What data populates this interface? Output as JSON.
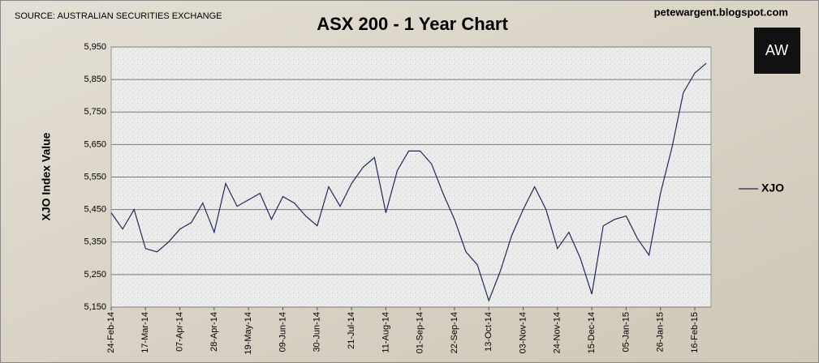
{
  "chart_data": {
    "type": "line",
    "title": "ASX 200 - 1 Year Chart",
    "source": "SOURCE: AUSTRALIAN SECURITIES EXCHANGE",
    "watermark": "petewargent.blogspot.com",
    "logo": "AW",
    "y_label": "XJO Index Value",
    "categories": [
      "24-Feb-14",
      null,
      null,
      "17-Mar-14",
      null,
      null,
      "07-Apr-14",
      null,
      null,
      "28-Apr-14",
      null,
      null,
      "19-May-14",
      null,
      null,
      "09-Jun-14",
      null,
      null,
      "30-Jun-14",
      null,
      null,
      "21-Jul-14",
      null,
      null,
      "11-Aug-14",
      null,
      null,
      "01-Sep-14",
      null,
      null,
      "22-Sep-14",
      null,
      null,
      "13-Oct-14",
      null,
      null,
      "03-Nov-14",
      null,
      null,
      "24-Nov-14",
      null,
      null,
      "15-Dec-14",
      null,
      null,
      "05-Jan-15",
      null,
      null,
      "26-Jan-15",
      null,
      null,
      "16-Feb-15",
      null
    ],
    "series": [
      {
        "name": "XJO",
        "color": "#1f2a5a",
        "values": [
          5440,
          5390,
          5450,
          5330,
          5320,
          5350,
          5390,
          5410,
          5470,
          5380,
          5530,
          5460,
          5480,
          5500,
          5420,
          5490,
          5470,
          5430,
          5400,
          5520,
          5460,
          5530,
          5580,
          5610,
          5440,
          5570,
          5630,
          5630,
          5590,
          5500,
          5420,
          5320,
          5280,
          5170,
          5260,
          5370,
          5450,
          5520,
          5450,
          5330,
          5380,
          5300,
          5190,
          5400,
          5420,
          5430,
          5360,
          5310,
          5500,
          5640,
          5810,
          5870,
          5900
        ]
      }
    ],
    "ylim": [
      5150,
      5950
    ],
    "yticks": [
      {
        "value": 5150,
        "label": "5,150"
      },
      {
        "value": 5250,
        "label": "5,250"
      },
      {
        "value": 5350,
        "label": "5,350"
      },
      {
        "value": 5450,
        "label": "5,450"
      },
      {
        "value": 5550,
        "label": "5,550"
      },
      {
        "value": 5650,
        "label": "5,650"
      },
      {
        "value": 5750,
        "label": "5,750"
      },
      {
        "value": 5850,
        "label": "5,850"
      },
      {
        "value": 5950,
        "label": "5,950"
      }
    ],
    "grid": true,
    "legend": "right"
  }
}
